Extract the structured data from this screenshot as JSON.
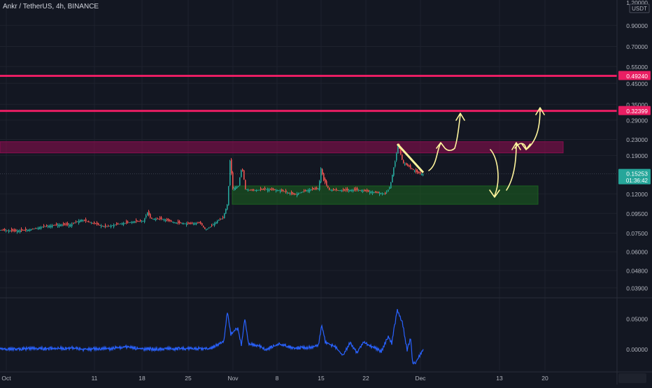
{
  "header": {
    "title": "Ankr / TetherUS, 4h, BINANCE"
  },
  "price_axis": {
    "unit": "USDT",
    "top_label": "1.20000",
    "ticks": [
      {
        "label": "0.90000",
        "value": 0.9
      },
      {
        "label": "0.70000",
        "value": 0.7
      },
      {
        "label": "0.55000",
        "value": 0.55
      },
      {
        "label": "0.45000",
        "value": 0.45
      },
      {
        "label": "0.35000",
        "value": 0.35
      },
      {
        "label": "0.29000",
        "value": 0.29
      },
      {
        "label": "0.23000",
        "value": 0.23
      },
      {
        "label": "0.19000",
        "value": 0.19
      },
      {
        "label": "0.12000",
        "value": 0.12
      },
      {
        "label": "0.09500",
        "value": 0.095
      },
      {
        "label": "0.07500",
        "value": 0.075
      },
      {
        "label": "0.06000",
        "value": 0.06
      },
      {
        "label": "0.04800",
        "value": 0.048
      },
      {
        "label": "0.03900",
        "value": 0.039
      }
    ],
    "levels": [
      {
        "label": "0.49240",
        "value": 0.4924,
        "color": "#e91e63"
      },
      {
        "label": "0.32399",
        "value": 0.32399,
        "color": "#e91e63"
      }
    ],
    "current": {
      "label": "0.15253",
      "countdown": "01:36:42",
      "value": 0.15253,
      "color": "#26a69a"
    }
  },
  "indicator_axis": {
    "ticks": [
      {
        "label": "0.05000",
        "value": 0.05
      },
      {
        "label": "0.00000",
        "value": 0.0
      }
    ]
  },
  "time_axis": {
    "ticks": [
      {
        "label": "Oct",
        "i": 9
      },
      {
        "label": "11",
        "i": 135
      },
      {
        "label": "18",
        "i": 203
      },
      {
        "label": "25",
        "i": 269
      },
      {
        "label": "Nov",
        "i": 333
      },
      {
        "label": "8",
        "i": 396
      },
      {
        "label": "15",
        "i": 459
      },
      {
        "label": "22",
        "i": 523
      },
      {
        "label": "Dec",
        "i": 601
      },
      {
        "label": "13",
        "i": 714
      },
      {
        "label": "20",
        "i": 779
      }
    ]
  },
  "zones": [
    {
      "name": "resistance-zone",
      "from_i": 0,
      "to_i": 805,
      "low": 0.196,
      "high": 0.224,
      "color": "#880e4f"
    },
    {
      "name": "support-zone",
      "from_i": 332,
      "to_i": 769,
      "low": 0.106,
      "high": 0.132,
      "color": "#1b5e20"
    }
  ],
  "chart_data": {
    "type": "line",
    "title": "Ankr / TetherUS, 4h, BINANCE",
    "x_unit": "time index (1 per pixel column)",
    "price_scale": "log",
    "ylim": [
      0.0355,
      1.2
    ],
    "series": [
      {
        "points": [
          [
            0,
            0.078
          ],
          [
            20,
            0.077
          ],
          [
            40,
            0.078
          ],
          [
            60,
            0.081
          ],
          [
            80,
            0.083
          ],
          [
            100,
            0.083
          ],
          [
            115,
            0.088
          ],
          [
            130,
            0.085
          ],
          [
            150,
            0.081
          ],
          [
            170,
            0.084
          ],
          [
            190,
            0.086
          ],
          [
            205,
            0.087
          ],
          [
            210,
            0.096
          ],
          [
            215,
            0.089
          ],
          [
            230,
            0.089
          ],
          [
            250,
            0.085
          ],
          [
            270,
            0.084
          ],
          [
            285,
            0.085
          ],
          [
            293,
            0.078
          ],
          [
            300,
            0.081
          ],
          [
            310,
            0.087
          ],
          [
            318,
            0.09
          ],
          [
            325,
            0.108
          ],
          [
            328,
            0.178
          ],
          [
            332,
            0.128
          ],
          [
            340,
            0.132
          ],
          [
            345,
            0.166
          ],
          [
            350,
            0.127
          ],
          [
            360,
            0.125
          ],
          [
            380,
            0.127
          ],
          [
            400,
            0.125
          ],
          [
            420,
            0.119
          ],
          [
            440,
            0.126
          ],
          [
            455,
            0.128
          ],
          [
            458,
            0.163
          ],
          [
            462,
            0.141
          ],
          [
            470,
            0.126
          ],
          [
            490,
            0.125
          ],
          [
            510,
            0.126
          ],
          [
            530,
            0.123
          ],
          [
            550,
            0.12
          ],
          [
            557,
            0.131
          ],
          [
            560,
            0.151
          ],
          [
            565,
            0.182
          ],
          [
            568,
            0.218
          ],
          [
            575,
            0.175
          ],
          [
            585,
            0.165
          ],
          [
            595,
            0.155
          ],
          [
            605,
            0.151
          ]
        ]
      },
      {
        "name": "indicator",
        "points": [
          [
            0,
            0.0
          ],
          [
            40,
            0.001
          ],
          [
            80,
            0.001
          ],
          [
            100,
            0.002
          ],
          [
            120,
            0.0
          ],
          [
            160,
            0.001
          ],
          [
            180,
            0.004
          ],
          [
            200,
            0.001
          ],
          [
            220,
            0.0
          ],
          [
            260,
            0.001
          ],
          [
            300,
            0.001
          ],
          [
            320,
            0.012
          ],
          [
            325,
            0.062
          ],
          [
            330,
            0.025
          ],
          [
            340,
            0.035
          ],
          [
            345,
            0.006
          ],
          [
            350,
            0.05
          ],
          [
            355,
            0.01
          ],
          [
            370,
            0.005
          ],
          [
            380,
            0.0
          ],
          [
            400,
            0.008
          ],
          [
            420,
            0.002
          ],
          [
            440,
            0.003
          ],
          [
            455,
            0.005
          ],
          [
            460,
            0.04
          ],
          [
            465,
            0.012
          ],
          [
            480,
            0.003
          ],
          [
            490,
            -0.01
          ],
          [
            500,
            0.01
          ],
          [
            510,
            -0.005
          ],
          [
            520,
            0.012
          ],
          [
            530,
            0.005
          ],
          [
            545,
            -0.003
          ],
          [
            555,
            0.02
          ],
          [
            560,
            0.01
          ],
          [
            568,
            0.065
          ],
          [
            575,
            0.045
          ],
          [
            582,
            -0.002
          ],
          [
            587,
            0.018
          ],
          [
            590,
            -0.025
          ],
          [
            595,
            -0.02
          ],
          [
            600,
            -0.01
          ],
          [
            605,
            0.0
          ]
        ]
      }
    ],
    "annotations": [
      {
        "type": "trendline",
        "from": [
          568,
          0.218
        ],
        "to": [
          605,
          0.155
        ],
        "color": "#fff59d"
      },
      {
        "type": "arrow-up",
        "color": "#fff59d"
      },
      {
        "type": "arrow-up",
        "color": "#fff59d"
      },
      {
        "type": "arrow-down",
        "color": "#fff59d"
      },
      {
        "type": "arrow-up",
        "color": "#fff59d"
      },
      {
        "type": "arrow-up",
        "color": "#fff59d"
      }
    ],
    "indicator_ylim": [
      -0.035,
      0.082
    ]
  },
  "colors": {
    "background": "#131722",
    "up": "#26a69a",
    "down": "#ef5350",
    "indicator": "#2962ff",
    "grid": "#1e222d",
    "text": "#b2b5be"
  }
}
